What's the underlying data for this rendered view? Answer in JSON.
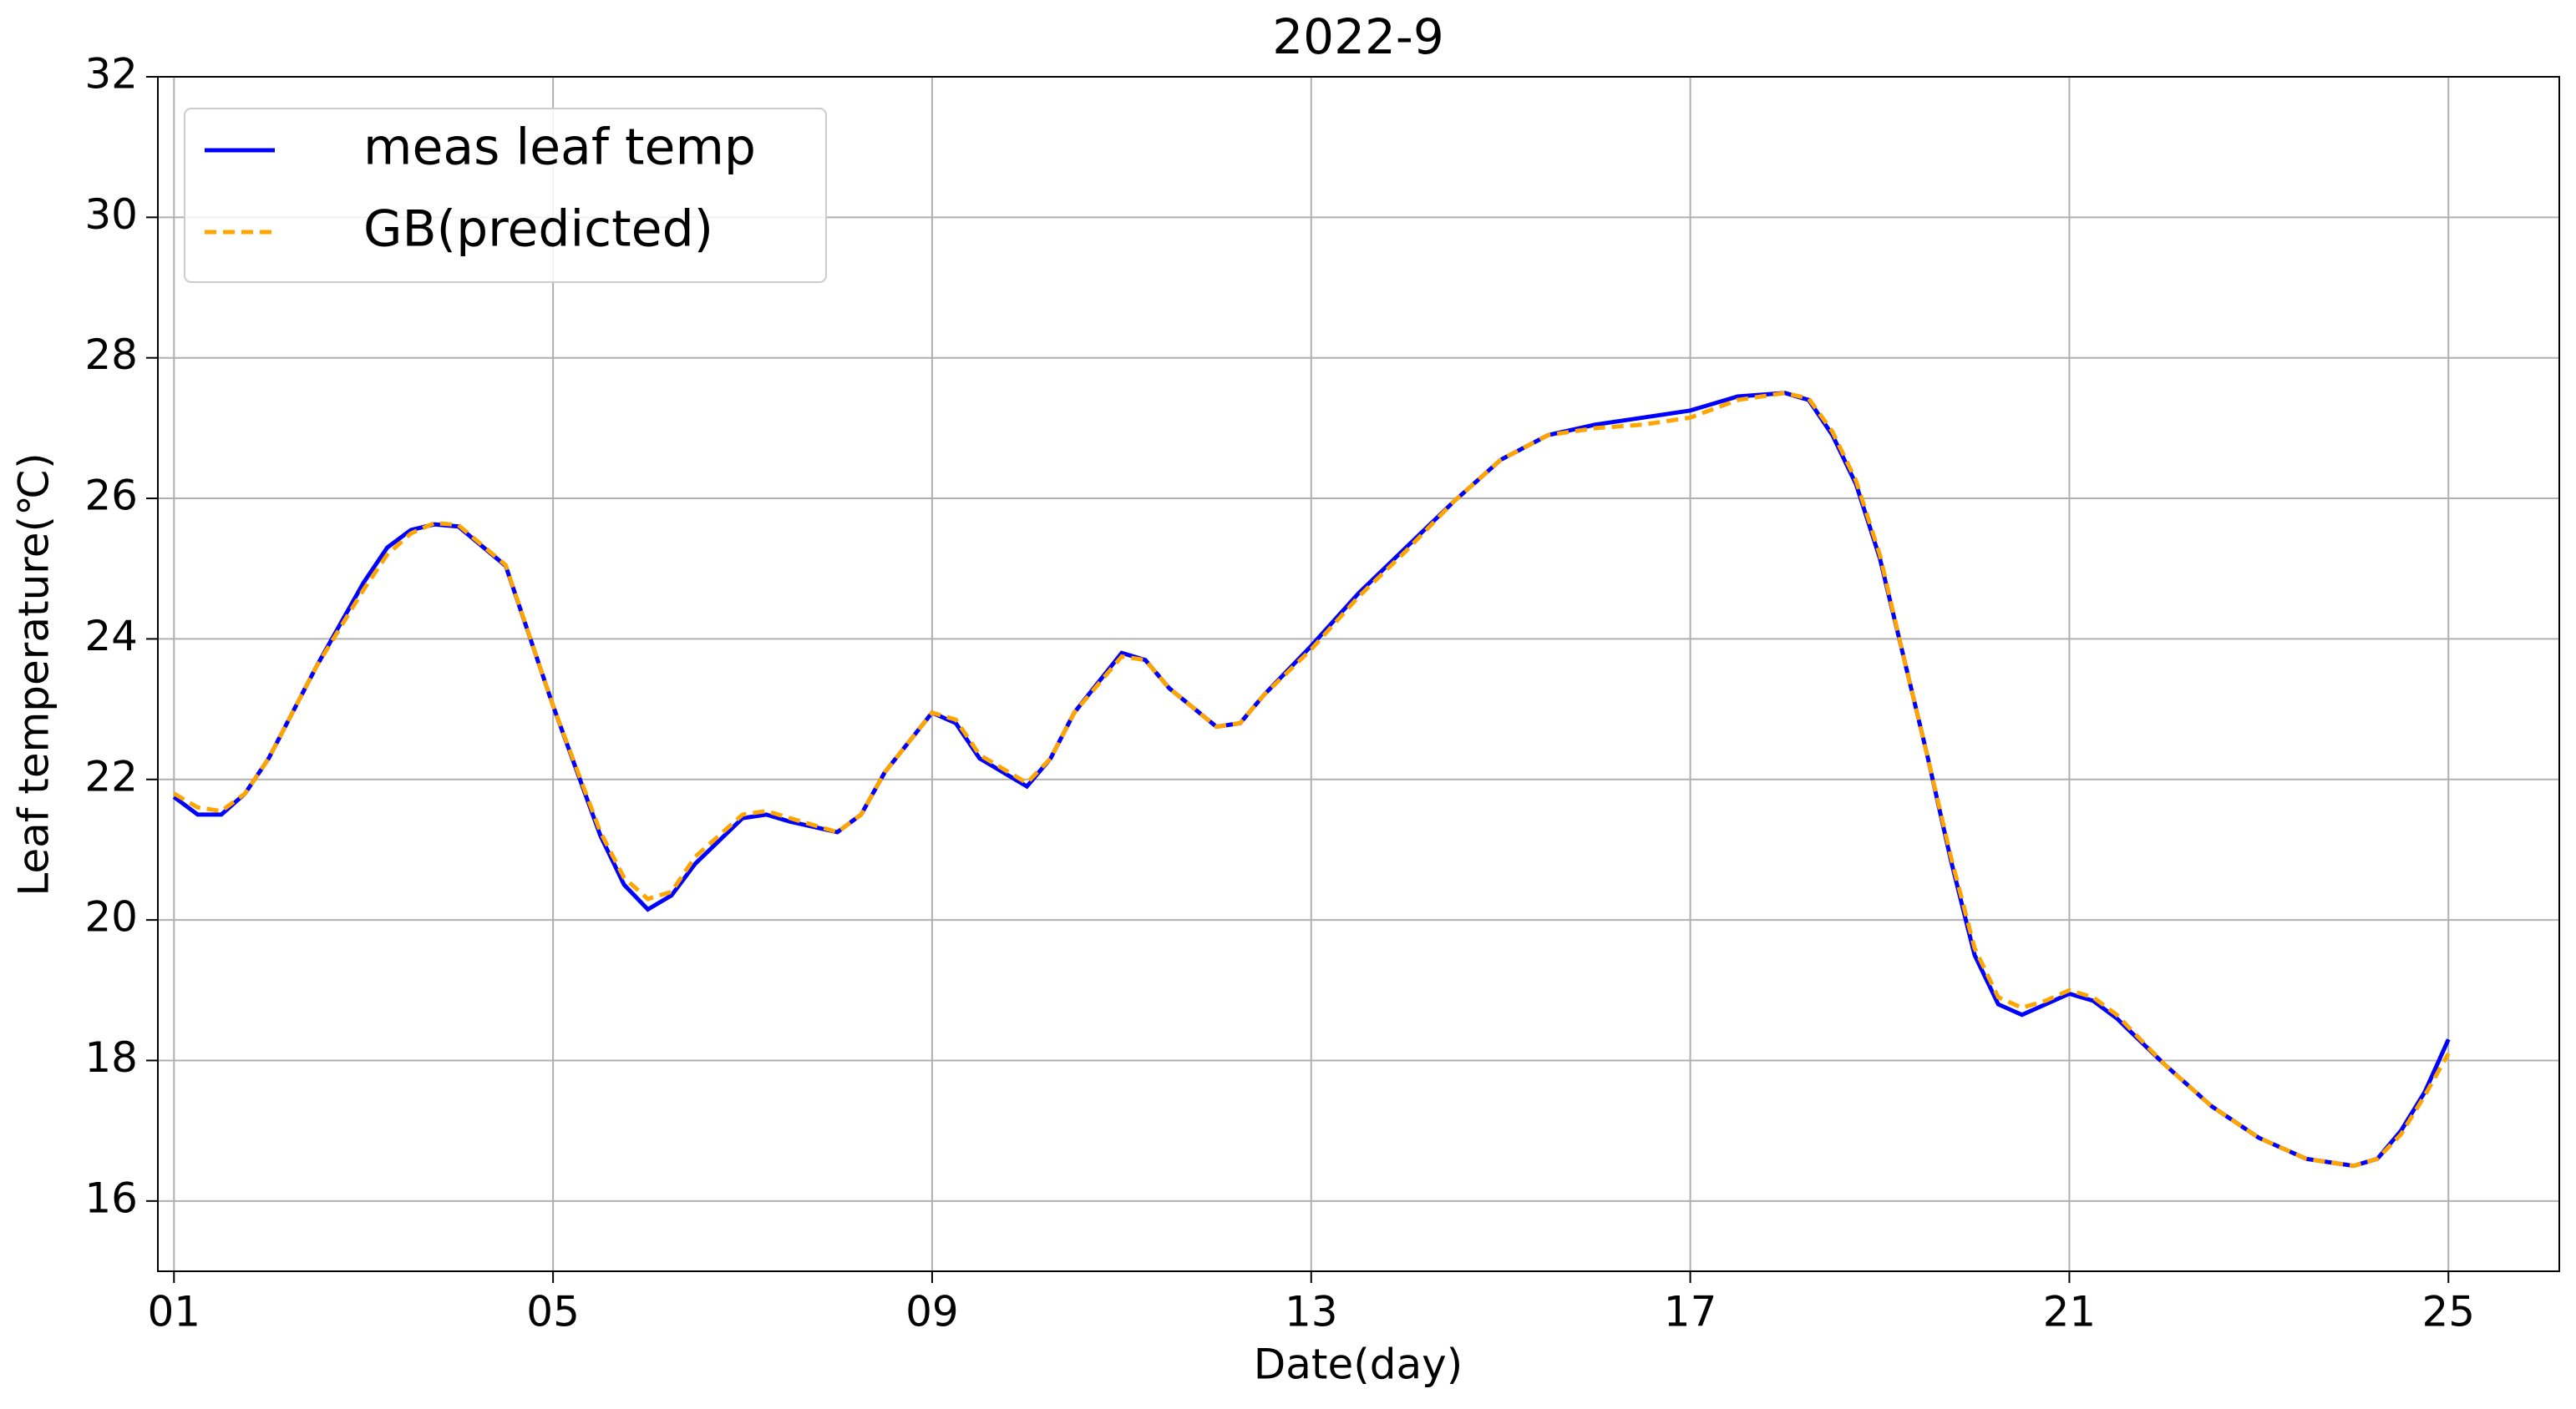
{
  "chart_data": {
    "type": "line",
    "title": "2022-9",
    "xlabel": "Date(day)",
    "ylabel": "Leaf temperature(℃)",
    "x": [
      1,
      1.25,
      1.5,
      1.75,
      2,
      2.5,
      3,
      3.25,
      3.5,
      3.75,
      4,
      4.5,
      5,
      5.5,
      5.75,
      6,
      6.25,
      6.5,
      7,
      7.25,
      7.5,
      8,
      8.25,
      8.5,
      9,
      9.25,
      9.5,
      10,
      10.25,
      10.5,
      11,
      11.25,
      11.5,
      12,
      12.25,
      12.5,
      13,
      13.5,
      14,
      14.5,
      15,
      15.5,
      16,
      16.5,
      17,
      17.5,
      18,
      18.25,
      18.5,
      18.75,
      19,
      19.25,
      19.5,
      19.75,
      20,
      20.25,
      20.5,
      20.75,
      21,
      21.25,
      21.5,
      22,
      22.5,
      23,
      23.5,
      24,
      24.25,
      24.5,
      24.75,
      25
    ],
    "series": [
      {
        "name": "meas leaf temp",
        "color": "#0000ff",
        "dash": "solid",
        "values": [
          21.75,
          21.5,
          21.5,
          21.8,
          22.3,
          23.6,
          24.8,
          25.3,
          25.55,
          25.63,
          25.6,
          25.04,
          23.05,
          21.2,
          20.5,
          20.15,
          20.35,
          20.8,
          21.45,
          21.5,
          21.4,
          21.25,
          21.5,
          22.1,
          22.95,
          22.8,
          22.3,
          21.9,
          22.3,
          22.95,
          23.8,
          23.7,
          23.3,
          22.75,
          22.8,
          23.2,
          23.9,
          24.65,
          25.3,
          25.95,
          26.55,
          26.9,
          27.05,
          27.15,
          27.25,
          27.45,
          27.5,
          27.4,
          26.9,
          26.2,
          25.15,
          23.75,
          22.35,
          20.85,
          19.5,
          18.8,
          18.65,
          18.8,
          18.95,
          18.85,
          18.6,
          17.95,
          17.35,
          16.9,
          16.6,
          16.5,
          16.6,
          17.0,
          17.55,
          18.3
        ]
      },
      {
        "name": "GB(predicted)",
        "color": "#ffa500",
        "dash": "dashed",
        "values": [
          21.8,
          21.6,
          21.55,
          21.8,
          22.3,
          23.6,
          24.7,
          25.2,
          25.5,
          25.65,
          25.62,
          25.05,
          23.05,
          21.25,
          20.6,
          20.3,
          20.4,
          20.9,
          21.5,
          21.55,
          21.45,
          21.25,
          21.5,
          22.1,
          22.95,
          22.85,
          22.35,
          21.95,
          22.3,
          22.95,
          23.75,
          23.7,
          23.3,
          22.75,
          22.8,
          23.2,
          23.85,
          24.6,
          25.25,
          25.95,
          26.55,
          26.9,
          27.0,
          27.05,
          27.15,
          27.4,
          27.5,
          27.42,
          26.95,
          26.25,
          25.2,
          23.75,
          22.35,
          20.9,
          19.6,
          18.9,
          18.75,
          18.85,
          19.0,
          18.9,
          18.65,
          17.95,
          17.35,
          16.9,
          16.6,
          16.5,
          16.6,
          16.95,
          17.5,
          18.1
        ]
      }
    ],
    "xlim": [
      0.83,
      26.17
    ],
    "ylim": [
      15,
      32
    ],
    "xticks": [
      {
        "value": 1,
        "label": "01"
      },
      {
        "value": 5,
        "label": "05"
      },
      {
        "value": 9,
        "label": "09"
      },
      13,
      17,
      21,
      25
    ],
    "yticks": [
      16,
      18,
      20,
      22,
      24,
      26,
      28,
      30,
      32
    ],
    "grid": true,
    "legend": "upper left"
  }
}
